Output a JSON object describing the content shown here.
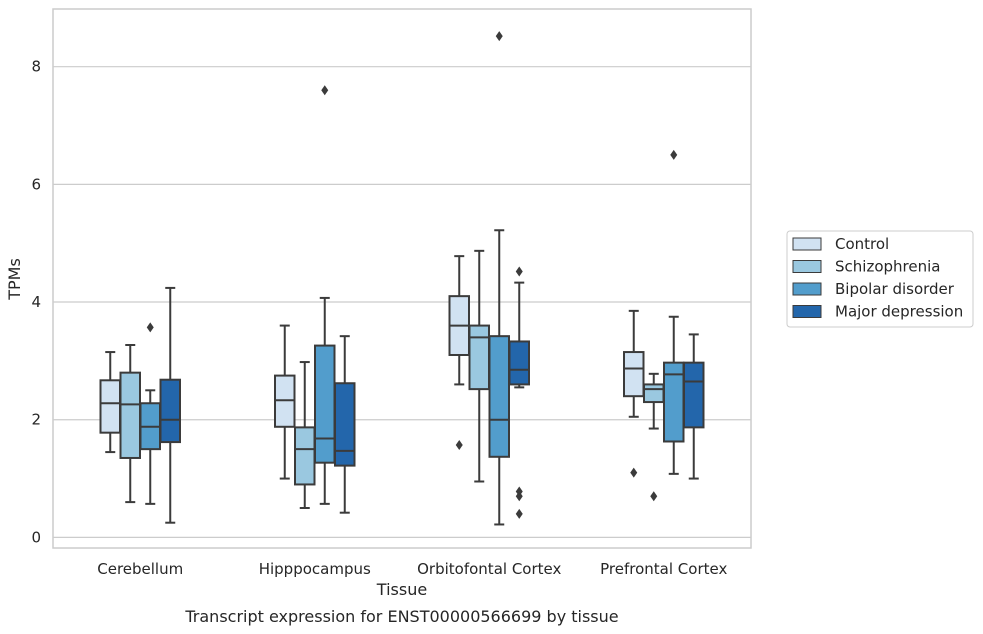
{
  "caption": "Transcript expression for ENST00000566699 by tissue",
  "colors": {
    "Control": "#d1e2f2",
    "Schizophrenia": "#9ac8e0",
    "Bipolar disorder": "#529dcc",
    "Major depression": "#2366ab",
    "line": "#3b3b3b",
    "grid": "#cccccc",
    "frame": "#cccccc"
  },
  "chart_data": {
    "type": "box",
    "xlabel": "Tissue",
    "ylabel": "TPMs",
    "ylim": [
      -0.18,
      8.98
    ],
    "yticks": [
      0,
      2,
      4,
      6,
      8
    ],
    "grid": "horizontal",
    "legend": {
      "placement": "right",
      "entries": [
        "Control",
        "Schizophrenia",
        "Bipolar disorder",
        "Major depression"
      ]
    },
    "categories": [
      "Cerebellum",
      "Hipppocampus",
      "Orbitofontal Cortex",
      "Prefrontal Cortex"
    ],
    "series": [
      {
        "name": "Control",
        "boxes": [
          {
            "min": 1.45,
            "q1": 1.78,
            "median": 2.28,
            "q3": 2.67,
            "max": 3.15,
            "outliers": []
          },
          {
            "min": 1.0,
            "q1": 1.88,
            "median": 2.33,
            "q3": 2.75,
            "max": 3.6,
            "outliers": []
          },
          {
            "min": 2.6,
            "q1": 3.1,
            "median": 3.6,
            "q3": 4.1,
            "max": 4.78,
            "outliers": [
              1.57
            ]
          },
          {
            "min": 2.05,
            "q1": 2.4,
            "median": 2.87,
            "q3": 3.15,
            "max": 3.85,
            "outliers": [
              1.1
            ]
          }
        ]
      },
      {
        "name": "Schizophrenia",
        "boxes": [
          {
            "min": 0.6,
            "q1": 1.35,
            "median": 2.26,
            "q3": 2.8,
            "max": 3.27,
            "outliers": []
          },
          {
            "min": 0.5,
            "q1": 0.9,
            "median": 1.5,
            "q3": 1.87,
            "max": 2.98,
            "outliers": []
          },
          {
            "min": 0.95,
            "q1": 2.52,
            "median": 3.4,
            "q3": 3.6,
            "max": 4.87,
            "outliers": []
          },
          {
            "min": 1.85,
            "q1": 2.3,
            "median": 2.52,
            "q3": 2.6,
            "max": 2.78,
            "outliers": [
              0.7
            ]
          }
        ]
      },
      {
        "name": "Bipolar disorder",
        "boxes": [
          {
            "min": 0.57,
            "q1": 1.5,
            "median": 1.88,
            "q3": 2.28,
            "max": 2.5,
            "outliers": [
              3.57
            ]
          },
          {
            "min": 0.57,
            "q1": 1.27,
            "median": 1.68,
            "q3": 3.26,
            "max": 4.07,
            "outliers": [
              7.6
            ]
          },
          {
            "min": 0.22,
            "q1": 1.37,
            "median": 2.0,
            "q3": 3.42,
            "max": 5.22,
            "outliers": [
              8.52
            ]
          },
          {
            "min": 1.08,
            "q1": 1.63,
            "median": 2.77,
            "q3": 2.97,
            "max": 3.75,
            "outliers": [
              6.5
            ]
          }
        ]
      },
      {
        "name": "Major depression",
        "boxes": [
          {
            "min": 0.25,
            "q1": 1.62,
            "median": 2.0,
            "q3": 2.68,
            "max": 4.24,
            "outliers": []
          },
          {
            "min": 0.42,
            "q1": 1.22,
            "median": 1.47,
            "q3": 2.62,
            "max": 3.42,
            "outliers": []
          },
          {
            "min": 2.55,
            "q1": 2.6,
            "median": 2.85,
            "q3": 3.33,
            "max": 4.33,
            "outliers": [
              4.52,
              0.78,
              0.7,
              0.4
            ]
          },
          {
            "min": 1.0,
            "q1": 1.87,
            "median": 2.65,
            "q3": 2.97,
            "max": 3.45,
            "outliers": []
          }
        ]
      }
    ]
  }
}
